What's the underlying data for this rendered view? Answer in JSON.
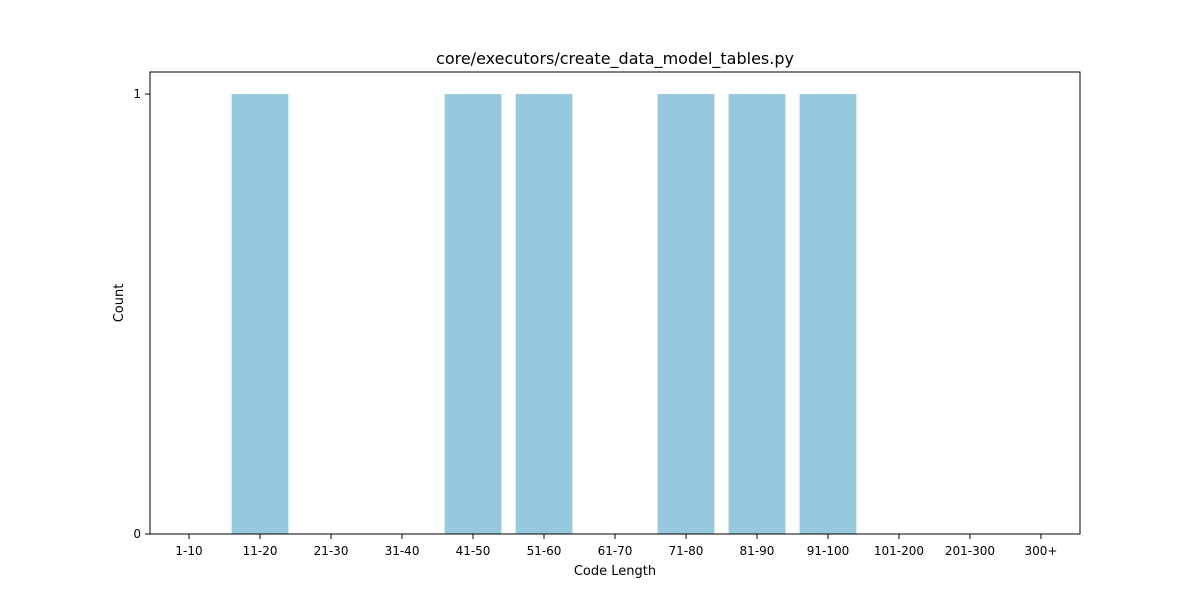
{
  "chart_data": {
    "type": "bar",
    "title": "core/executors/create_data_model_tables.py",
    "xlabel": "Code Length",
    "ylabel": "Count",
    "categories": [
      "1-10",
      "11-20",
      "21-30",
      "31-40",
      "41-50",
      "51-60",
      "61-70",
      "71-80",
      "81-90",
      "91-100",
      "101-200",
      "201-300",
      "300+"
    ],
    "values": [
      0,
      1,
      0,
      0,
      1,
      1,
      0,
      1,
      1,
      1,
      0,
      0,
      0
    ],
    "yticks": [
      0,
      1
    ],
    "ylim": [
      0,
      1.05
    ],
    "grid": false,
    "bar_color": "#96c9dd"
  }
}
